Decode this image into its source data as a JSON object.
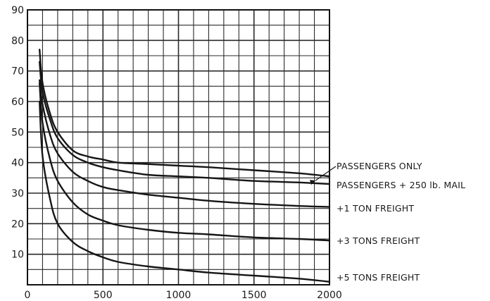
{
  "chart_data": {
    "type": "line",
    "title": "",
    "xlabel": "",
    "ylabel": "",
    "xlim": [
      0,
      2000
    ],
    "ylim": [
      0,
      90
    ],
    "grid": true,
    "legend": "inline labels at right end of each curve",
    "x_ticks": [
      "0",
      "500",
      "1000",
      "1500",
      "2000"
    ],
    "y_ticks": [
      "10",
      "20",
      "30",
      "40",
      "50",
      "60",
      "70",
      "80",
      "90"
    ],
    "series": [
      {
        "name": "PASSENGERS ONLY",
        "points": [
          [
            80,
            77
          ],
          [
            100,
            66
          ],
          [
            150,
            56
          ],
          [
            200,
            50
          ],
          [
            300,
            44
          ],
          [
            400,
            42
          ],
          [
            500,
            41
          ],
          [
            600,
            40
          ],
          [
            800,
            39.5
          ],
          [
            1000,
            39
          ],
          [
            1200,
            38.5
          ],
          [
            1500,
            37.5
          ],
          [
            1800,
            36.5
          ],
          [
            2000,
            35.5
          ]
        ]
      },
      {
        "name": "PASSENGERS + 250 lb. MAIL",
        "points": [
          [
            80,
            73
          ],
          [
            100,
            63
          ],
          [
            150,
            54
          ],
          [
            200,
            48
          ],
          [
            300,
            42.5
          ],
          [
            400,
            40
          ],
          [
            500,
            38.5
          ],
          [
            600,
            37.5
          ],
          [
            800,
            36
          ],
          [
            1000,
            35.5
          ],
          [
            1200,
            35
          ],
          [
            1500,
            34
          ],
          [
            1800,
            33.5
          ],
          [
            2000,
            33
          ]
        ]
      },
      {
        "name": "+1 TON FREIGHT",
        "points": [
          [
            80,
            67
          ],
          [
            100,
            59
          ],
          [
            150,
            49
          ],
          [
            200,
            43
          ],
          [
            300,
            37
          ],
          [
            400,
            34
          ],
          [
            500,
            32
          ],
          [
            600,
            31
          ],
          [
            800,
            29.5
          ],
          [
            1000,
            28.5
          ],
          [
            1200,
            27.5
          ],
          [
            1500,
            26.5
          ],
          [
            1800,
            25.8
          ],
          [
            2000,
            25.5
          ]
        ]
      },
      {
        "name": "+3  TONS FREIGHT",
        "points": [
          [
            80,
            66
          ],
          [
            100,
            53
          ],
          [
            150,
            41
          ],
          [
            200,
            34
          ],
          [
            300,
            27
          ],
          [
            400,
            23
          ],
          [
            500,
            21
          ],
          [
            600,
            19.5
          ],
          [
            800,
            18
          ],
          [
            1000,
            17
          ],
          [
            1200,
            16.5
          ],
          [
            1500,
            15.5
          ],
          [
            1800,
            15
          ],
          [
            2000,
            14.5
          ]
        ]
      },
      {
        "name": "+5 TONS FREIGHT",
        "points": [
          [
            80,
            60
          ],
          [
            100,
            42
          ],
          [
            150,
            28
          ],
          [
            200,
            20
          ],
          [
            300,
            14
          ],
          [
            400,
            11
          ],
          [
            500,
            9
          ],
          [
            600,
            7.5
          ],
          [
            800,
            6
          ],
          [
            1000,
            5
          ],
          [
            1200,
            4
          ],
          [
            1500,
            3
          ],
          [
            1800,
            2
          ],
          [
            2000,
            1
          ]
        ]
      }
    ]
  }
}
